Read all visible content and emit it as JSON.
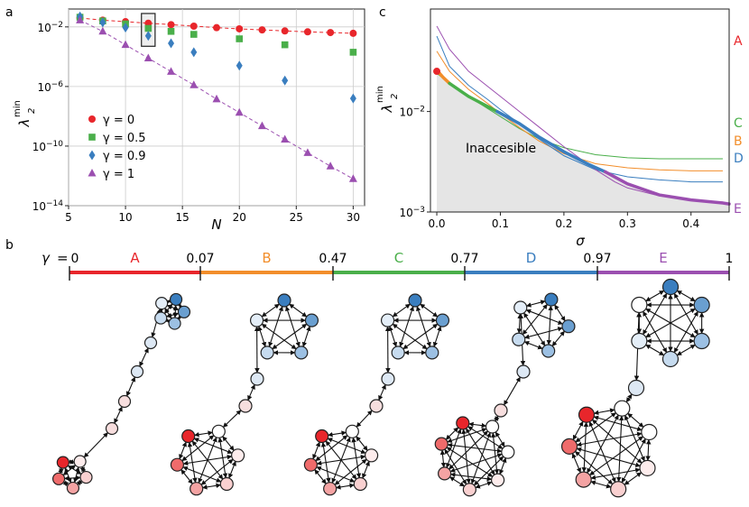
{
  "panel_labels": {
    "a": "a",
    "b": "b",
    "c": "c"
  },
  "colors": {
    "red": "#d62728",
    "green": "#4aaf4a",
    "blue": "#3a7ebf",
    "purple": "#9b4fb0",
    "orange": "#f28e2b"
  },
  "chart_data": [
    {
      "type": "scatter",
      "panel": "a",
      "xlabel": "N",
      "ylabel": "λ2 min",
      "ylabel_main": "λ",
      "ylabel_sub": "2",
      "ylabel_sup": "min",
      "xlim": [
        5,
        31
      ],
      "ylim_log10": [
        -14,
        -0.8
      ],
      "y_scale": "log",
      "x_ticks": [
        5,
        10,
        15,
        20,
        25,
        30
      ],
      "y_ticks": [
        {
          "exp": -2,
          "base": "10",
          "pow": "−2"
        },
        {
          "exp": -6,
          "base": "10",
          "pow": "−6"
        },
        {
          "exp": -10,
          "base": "10",
          "pow": "−10"
        },
        {
          "exp": -14,
          "base": "10",
          "pow": "−14"
        }
      ],
      "highlight_box": {
        "x": [
          11.4,
          12.6
        ],
        "y_log10": [
          -3.3,
          -1.1
        ]
      },
      "series": [
        {
          "name": "γ = 0",
          "marker": "circle",
          "color": "#e8262b",
          "dashed": true,
          "x": [
            6,
            8,
            10,
            12,
            14,
            16,
            18,
            20,
            22,
            24,
            26,
            28,
            30
          ],
          "log10_y": [
            -1.4,
            -1.55,
            -1.65,
            -1.75,
            -1.85,
            -1.95,
            -2.05,
            -2.13,
            -2.2,
            -2.27,
            -2.33,
            -2.38,
            -2.43
          ]
        },
        {
          "name": "γ = 0.5",
          "marker": "square",
          "color": "#4aaf4a",
          "dashed": false,
          "x": [
            6,
            8,
            10,
            12,
            14,
            16,
            20,
            24,
            30
          ],
          "log10_y": [
            -1.35,
            -1.6,
            -1.8,
            -2.1,
            -2.3,
            -2.5,
            -2.8,
            -3.2,
            -3.7
          ]
        },
        {
          "name": "γ = 0.9",
          "marker": "diamond",
          "color": "#3a7ebf",
          "dashed": false,
          "x": [
            6,
            8,
            10,
            12,
            14,
            16,
            20,
            24,
            30
          ],
          "log10_y": [
            -1.3,
            -1.7,
            -2.05,
            -2.6,
            -3.1,
            -3.7,
            -4.6,
            -5.6,
            -6.8
          ]
        },
        {
          "name": "γ = 1",
          "marker": "triangle",
          "color": "#9b4fb0",
          "dashed": true,
          "x": [
            6,
            8,
            10,
            12,
            14,
            16,
            18,
            20,
            22,
            24,
            26,
            28,
            30
          ],
          "log10_y": [
            -1.55,
            -2.3,
            -3.2,
            -4.1,
            -5.0,
            -5.9,
            -6.85,
            -7.75,
            -8.65,
            -9.55,
            -10.45,
            -11.35,
            -12.2
          ]
        }
      ]
    },
    {
      "type": "line",
      "panel": "c",
      "xlabel": "σ",
      "ylabel": "λ2 min",
      "ylabel_main": "λ",
      "ylabel_sub": "2",
      "ylabel_sup": "min",
      "xlim": [
        -0.01,
        0.46
      ],
      "ylim_log10": [
        -3.0,
        -0.98
      ],
      "y_scale": "log",
      "x_ticks": [
        {
          "v": 0.0,
          "t": "0.0"
        },
        {
          "v": 0.1,
          "t": "0.1"
        },
        {
          "v": 0.2,
          "t": "0.2"
        },
        {
          "v": 0.3,
          "t": "0.3"
        },
        {
          "v": 0.4,
          "t": "0.4"
        }
      ],
      "y_ticks": [
        {
          "exp": -2,
          "base": "10",
          "pow": "−2"
        },
        {
          "exp": -3,
          "base": "10",
          "pow": "−3"
        }
      ],
      "annotation": "Inaccesible",
      "thin_curves": [
        {
          "name": "C",
          "color": "#4aaf4a",
          "x": [
            0,
            0.02,
            0.05,
            0.08,
            0.1,
            0.13,
            0.16,
            0.2,
            0.25,
            0.3,
            0.35,
            0.4,
            0.45
          ],
          "log10_y": [
            -1.62,
            -1.72,
            -1.85,
            -1.97,
            -2.05,
            -2.17,
            -2.27,
            -2.36,
            -2.43,
            -2.46,
            -2.47,
            -2.47,
            -2.47
          ]
        },
        {
          "name": "B",
          "color": "#f28e2b",
          "x": [
            0,
            0.02,
            0.05,
            0.08,
            0.1,
            0.13,
            0.16,
            0.2,
            0.25,
            0.3,
            0.35,
            0.4,
            0.45
          ],
          "log10_y": [
            -1.4,
            -1.6,
            -1.78,
            -1.92,
            -2.02,
            -2.16,
            -2.29,
            -2.42,
            -2.52,
            -2.56,
            -2.58,
            -2.59,
            -2.59
          ]
        },
        {
          "name": "D",
          "color": "#3a7ebf",
          "x": [
            0,
            0.02,
            0.05,
            0.08,
            0.1,
            0.13,
            0.16,
            0.2,
            0.25,
            0.3,
            0.35,
            0.4,
            0.45
          ],
          "log10_y": [
            -1.25,
            -1.55,
            -1.74,
            -1.88,
            -1.98,
            -2.12,
            -2.27,
            -2.44,
            -2.58,
            -2.65,
            -2.68,
            -2.7,
            -2.7
          ]
        },
        {
          "name": "E",
          "color": "#9b4fb0",
          "x": [
            0,
            0.02,
            0.05,
            0.08,
            0.1,
            0.13,
            0.16,
            0.2,
            0.25,
            0.28,
            0.3,
            0.35,
            0.4,
            0.45
          ],
          "log10_y": [
            -1.15,
            -1.38,
            -1.6,
            -1.75,
            -1.85,
            -2.0,
            -2.15,
            -2.35,
            -2.58,
            -2.7,
            -2.76,
            -2.84,
            -2.88,
            -2.9
          ]
        }
      ],
      "boundary": [
        {
          "name": "A",
          "color": "#e8262b",
          "x": [
            0,
            0.003
          ],
          "log10_y": [
            -1.6,
            -1.61
          ]
        },
        {
          "name": "B",
          "color": "#f28e2b",
          "x": [
            0.003,
            0.01,
            0.02
          ],
          "log10_y": [
            -1.61,
            -1.66,
            -1.72
          ]
        },
        {
          "name": "C",
          "color": "#4aaf4a",
          "x": [
            0.02,
            0.05,
            0.08,
            0.095
          ],
          "log10_y": [
            -1.72,
            -1.85,
            -1.95,
            -2.0
          ]
        },
        {
          "name": "D",
          "color": "#3a7ebf",
          "x": [
            0.095,
            0.13,
            0.16,
            0.2,
            0.24,
            0.265
          ],
          "log10_y": [
            -2.0,
            -2.12,
            -2.25,
            -2.4,
            -2.53,
            -2.6
          ]
        },
        {
          "name": "E",
          "color": "#9b4fb0",
          "x": [
            0.265,
            0.3,
            0.35,
            0.4,
            0.45,
            0.46
          ],
          "log10_y": [
            -2.6,
            -2.72,
            -2.83,
            -2.88,
            -2.91,
            -2.92
          ]
        }
      ],
      "start_point": {
        "x": 0,
        "log10_y": -1.6,
        "color": "#e8262b"
      },
      "side_labels": [
        {
          "text": "A",
          "color": "#e8262b"
        },
        {
          "text": "C",
          "color": "#4aaf4a"
        },
        {
          "text": "B",
          "color": "#f28e2b"
        },
        {
          "text": "D",
          "color": "#3a7ebf"
        },
        {
          "text": "E",
          "color": "#9b4fb0"
        }
      ]
    }
  ],
  "panel_b": {
    "gamma_label": "γ",
    "gamma_eq": "=",
    "ticks": [
      "0",
      "0.07",
      "0.47",
      "0.77",
      "0.97",
      "1"
    ],
    "regions": [
      {
        "name": "A",
        "color": "#e8262b"
      },
      {
        "name": "B",
        "color": "#f28e2b"
      },
      {
        "name": "C",
        "color": "#4aaf4a"
      },
      {
        "name": "D",
        "color": "#3a7ebf"
      },
      {
        "name": "E",
        "color": "#9b4fb0"
      }
    ]
  }
}
